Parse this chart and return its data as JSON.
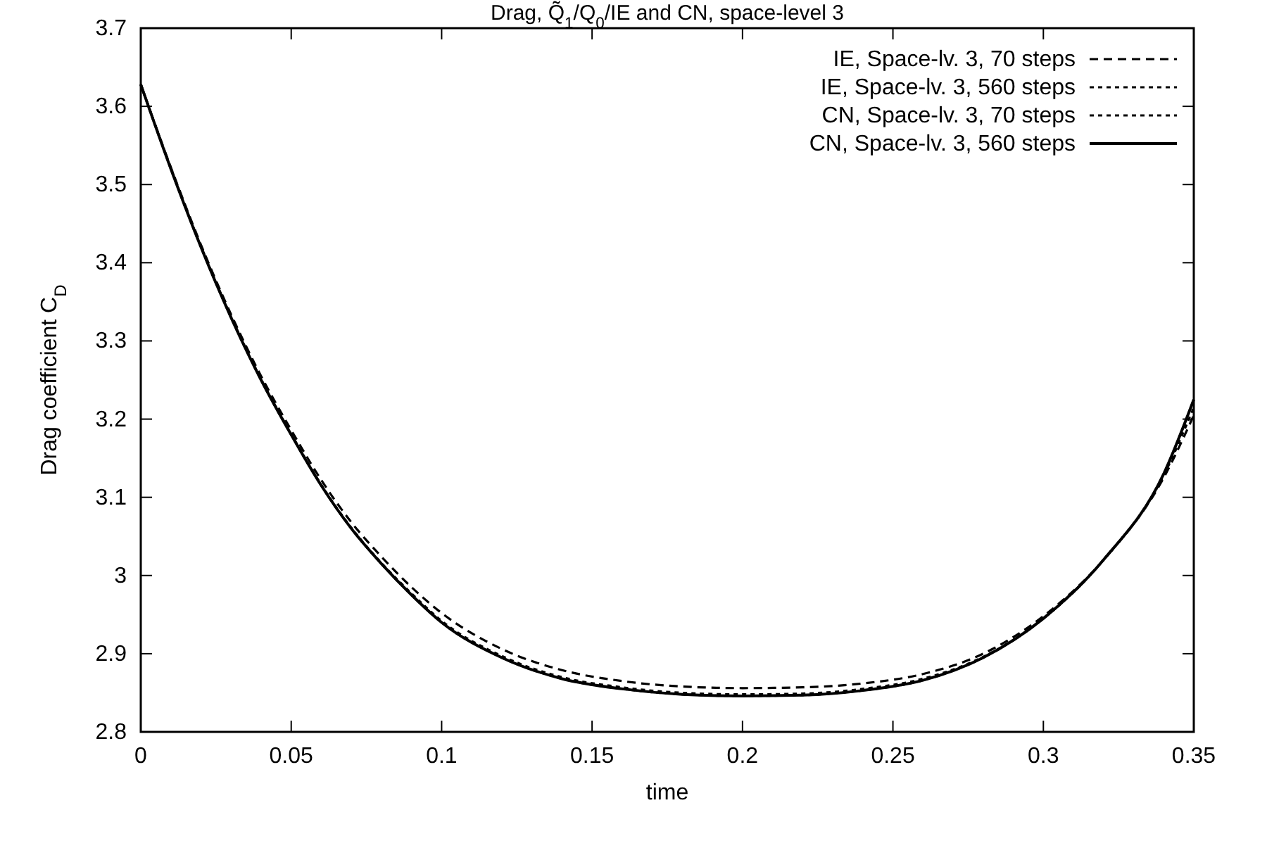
{
  "chart_data": {
    "type": "line",
    "title": "Drag, Q̃$_{1}$/Q$_{0}$/IE and CN, space-level 3",
    "xlabel": "time",
    "ylabel": "Drag coefficient C$_{D}$",
    "xlim": [
      0,
      0.35
    ],
    "ylim": [
      2.8,
      3.7
    ],
    "xticks": [
      0,
      0.05,
      0.1,
      0.15,
      0.2,
      0.25,
      0.3,
      0.35
    ],
    "yticks": [
      2.8,
      2.9,
      3,
      3.1,
      3.2,
      3.3,
      3.4,
      3.5,
      3.6,
      3.7
    ],
    "legend": "top right",
    "grid": false,
    "x": [
      0,
      0.01,
      0.02,
      0.03,
      0.04,
      0.05,
      0.06,
      0.07,
      0.08,
      0.09,
      0.1,
      0.12,
      0.14,
      0.16,
      0.18,
      0.2,
      0.22,
      0.24,
      0.26,
      0.28,
      0.3,
      0.32,
      0.34,
      0.35
    ],
    "series": [
      {
        "name": "IE, Space-lv. 3, 70 steps",
        "color": "#000000",
        "line_style": "dashed",
        "values": [
          3.628,
          3.522,
          3.423,
          3.334,
          3.255,
          3.186,
          3.122,
          3.068,
          3.024,
          2.985,
          2.952,
          2.906,
          2.879,
          2.865,
          2.858,
          2.856,
          2.857,
          2.862,
          2.874,
          2.9,
          2.948,
          3.02,
          3.125,
          3.205
        ]
      },
      {
        "name": "IE, Space-lv. 3, 560 steps",
        "color": "#000000",
        "line_style": "dotted",
        "values": [
          3.628,
          3.521,
          3.421,
          3.331,
          3.251,
          3.181,
          3.116,
          3.061,
          3.016,
          2.977,
          2.942,
          2.897,
          2.87,
          2.857,
          2.85,
          2.848,
          2.849,
          2.855,
          2.868,
          2.896,
          2.945,
          3.02,
          3.128,
          3.215
        ]
      },
      {
        "name": "CN, Space-lv. 3, 70 steps",
        "color": "#000000",
        "line_style": "dotted",
        "values": [
          3.628,
          3.52,
          3.42,
          3.33,
          3.25,
          3.18,
          3.115,
          3.06,
          3.015,
          2.975,
          2.94,
          2.895,
          2.868,
          2.855,
          2.848,
          2.846,
          2.847,
          2.853,
          2.866,
          2.895,
          2.945,
          3.02,
          3.13,
          3.225
        ]
      },
      {
        "name": "CN, Space-lv. 3, 560 steps",
        "color": "#000000",
        "line_style": "solid",
        "values": [
          3.628,
          3.52,
          3.42,
          3.33,
          3.25,
          3.18,
          3.115,
          3.06,
          3.015,
          2.975,
          2.94,
          2.895,
          2.868,
          2.855,
          2.848,
          2.846,
          2.847,
          2.853,
          2.866,
          2.895,
          2.945,
          3.02,
          3.13,
          3.225
        ]
      }
    ]
  }
}
